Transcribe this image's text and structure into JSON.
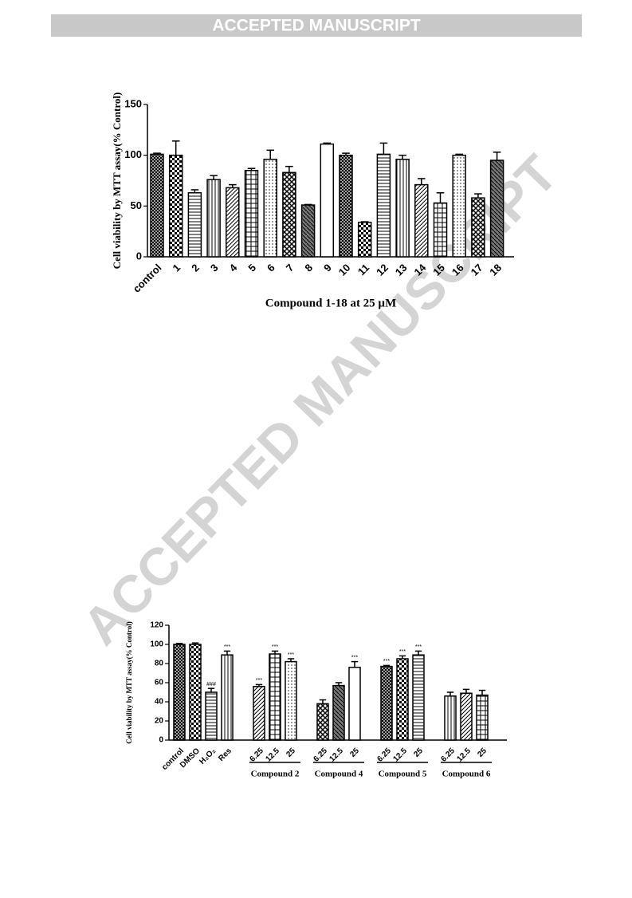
{
  "header": {
    "banner": "ACCEPTED MANUSCRIPT"
  },
  "watermark": "ACCEPTED MANUSCRIPT",
  "chart_data": [
    {
      "type": "bar",
      "ylabel": "Cell viability by MTT assay(% Control)",
      "xlabel": "Compound 1-18 at 25 µM",
      "categories": [
        "control",
        "1",
        "2",
        "3",
        "4",
        "5",
        "6",
        "7",
        "8",
        "9",
        "10",
        "11",
        "12",
        "13",
        "14",
        "15",
        "16",
        "17",
        "18"
      ],
      "values": [
        101,
        100,
        63,
        76,
        68,
        85,
        96,
        83,
        51,
        111,
        100,
        34,
        101,
        96,
        71,
        53,
        100,
        58,
        95
      ],
      "errors": [
        1,
        14,
        3,
        4,
        3,
        2,
        9,
        6,
        0.5,
        1,
        2,
        0.5,
        11,
        4,
        6,
        10,
        1,
        4,
        8
      ],
      "color": "#000000",
      "ylim": [
        0,
        150
      ],
      "yticks": [
        0,
        50,
        100,
        150
      ]
    },
    {
      "type": "bar",
      "ylabel": "Cell viability by MTT assay(% Control)",
      "categories": [
        "control",
        "DMSO",
        "H₂O₂",
        "Res",
        "6.25",
        "12.5",
        "25",
        "6.25",
        "12.5",
        "25",
        "6.25",
        "12.5",
        "25",
        "6.25",
        "12.5",
        "25"
      ],
      "groups": [
        null,
        null,
        null,
        null,
        "Compound 2",
        "Compound 2",
        "Compound 2",
        "Compound 4",
        "Compound 4",
        "Compound 4",
        "Compound 5",
        "Compound 5",
        "Compound 5",
        "Compound 6",
        "Compound 6",
        "Compound 6"
      ],
      "values": [
        100,
        100,
        50,
        89,
        56,
        90,
        82,
        38,
        57,
        76,
        77,
        85,
        89,
        46,
        49,
        47
      ],
      "errors": [
        1,
        1.5,
        4,
        4,
        2,
        3,
        3,
        4,
        3,
        6,
        1,
        3,
        4,
        4,
        4,
        5
      ],
      "significance": [
        null,
        null,
        "###",
        "***",
        "***",
        "***",
        "***",
        null,
        null,
        "***",
        "***",
        "***",
        "***",
        null,
        null,
        null
      ],
      "color": "#000000",
      "ylim": [
        0,
        120
      ],
      "yticks": [
        0,
        20,
        40,
        60,
        80,
        100,
        120
      ]
    }
  ]
}
